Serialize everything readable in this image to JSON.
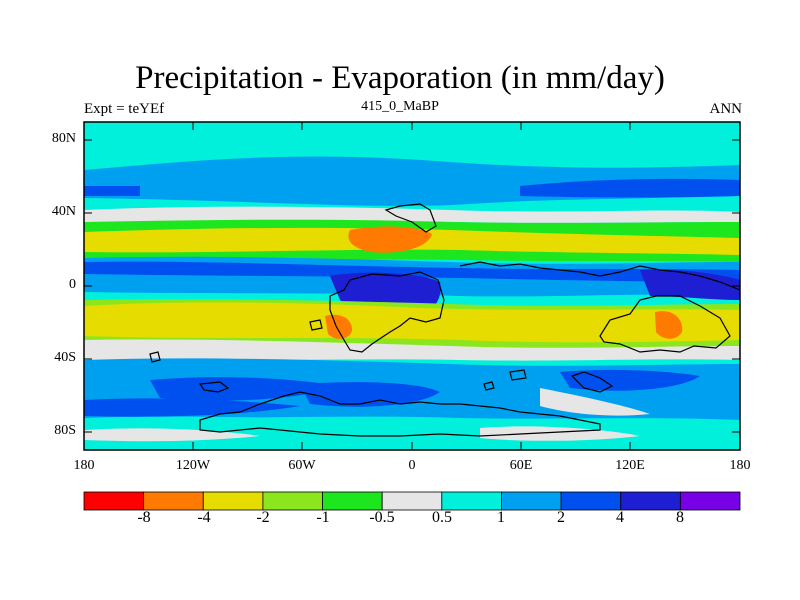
{
  "title": "Precipitation - Evaporation (in mm/day)",
  "subtitle_left": "Expt = teYEf",
  "subtitle_center": "415_0_MaBP",
  "subtitle_right": "ANN",
  "y_ticks": [
    "80N",
    "40N",
    "0",
    "40S",
    "80S"
  ],
  "x_ticks": [
    "180",
    "120W",
    "60W",
    "0",
    "60E",
    "120E",
    "180"
  ],
  "colorbar": {
    "colors": [
      "#ff0000",
      "#ff7a00",
      "#e6dc00",
      "#8ce61e",
      "#1ee61e",
      "#e6e6e6",
      "#00f0dc",
      "#00a0f0",
      "#0050f0",
      "#1e1ed2",
      "#7800e6"
    ],
    "labels": [
      "-8",
      "-4",
      "-2",
      "-1",
      "-0.5",
      "0.5",
      "1",
      "2",
      "4",
      "8"
    ]
  }
}
